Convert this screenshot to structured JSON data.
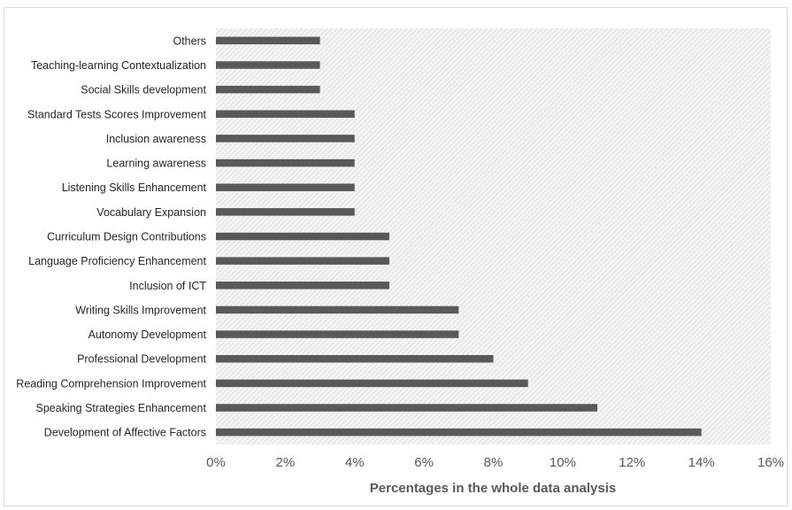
{
  "chart_data": {
    "type": "bar",
    "orientation": "horizontal",
    "categories": [
      "Others",
      "Teaching-learning Contextualization",
      "Social Skills development",
      "Standard Tests Scores Improvement",
      "Inclusion awareness",
      "Learning awareness",
      "Listening Skills Enhancement",
      "Vocabulary Expansion",
      "Curriculum Design Contributions",
      "Language Proficiency Enhancement",
      "Inclusion of ICT",
      "Writing Skills Improvement",
      "Autonomy Development",
      "Professional Development",
      "Reading Comprehension Improvement",
      "Speaking Strategies Enhancement",
      "Development of Affective Factors"
    ],
    "values": [
      3,
      3,
      3,
      4,
      4,
      4,
      4,
      4,
      5,
      5,
      5,
      7,
      7,
      8,
      9,
      11,
      14
    ],
    "xlabel": "Percentages in the whole data analysis",
    "xlim": [
      0,
      16
    ],
    "xticks": [
      "0%",
      "2%",
      "4%",
      "6%",
      "8%",
      "10%",
      "12%",
      "14%",
      "16%"
    ],
    "plot_background": "hatched light gray",
    "grid": false,
    "bar_color": "#595959"
  }
}
